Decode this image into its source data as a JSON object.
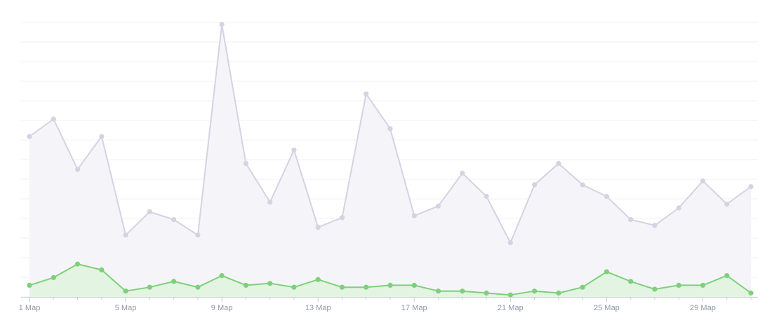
{
  "chart_data": {
    "type": "area",
    "x": [
      "1 Мар",
      "2 Мар",
      "3 Мар",
      "4 Мар",
      "5 Мар",
      "6 Мар",
      "7 Мар",
      "8 Мар",
      "9 Мар",
      "10 Мар",
      "11 Мар",
      "12 Мар",
      "13 Мар",
      "14 Мар",
      "15 Мар",
      "16 Мар",
      "17 Мар",
      "18 Мар",
      "19 Мар",
      "20 Мар",
      "21 Мар",
      "22 Мар",
      "23 Мар",
      "24 Мар",
      "25 Мар",
      "26 Мар",
      "27 Мар",
      "28 Мар",
      "29 Мар",
      "30 Мар",
      "31 Мар"
    ],
    "tick_labels": [
      "1 Мар",
      "5 Мар",
      "9 Мар",
      "13 Мар",
      "17 Мар",
      "21 Мар",
      "25 Мар",
      "29 Мар"
    ],
    "series": [
      {
        "values": [
          83,
          92,
          66,
          83,
          32,
          44,
          40,
          32,
          141,
          69,
          49,
          76,
          36,
          41,
          105,
          87,
          42,
          47,
          64,
          52,
          28,
          58,
          69,
          58,
          52,
          40,
          37,
          46,
          60,
          48,
          57
        ],
        "color": "#d4d3e2",
        "fill": "#f5f5f9"
      },
      {
        "values": [
          6,
          10,
          17,
          14,
          3,
          5,
          8,
          5,
          11,
          6,
          7,
          5,
          9,
          5,
          5,
          6,
          6,
          3,
          3,
          2,
          1,
          3,
          2,
          5,
          13,
          8,
          4,
          6,
          6,
          11,
          2
        ],
        "color": "#7ed07a",
        "fill": "#e3f4e2"
      }
    ],
    "ylim": [
      0,
      142
    ],
    "grid": true,
    "legend": "none"
  }
}
